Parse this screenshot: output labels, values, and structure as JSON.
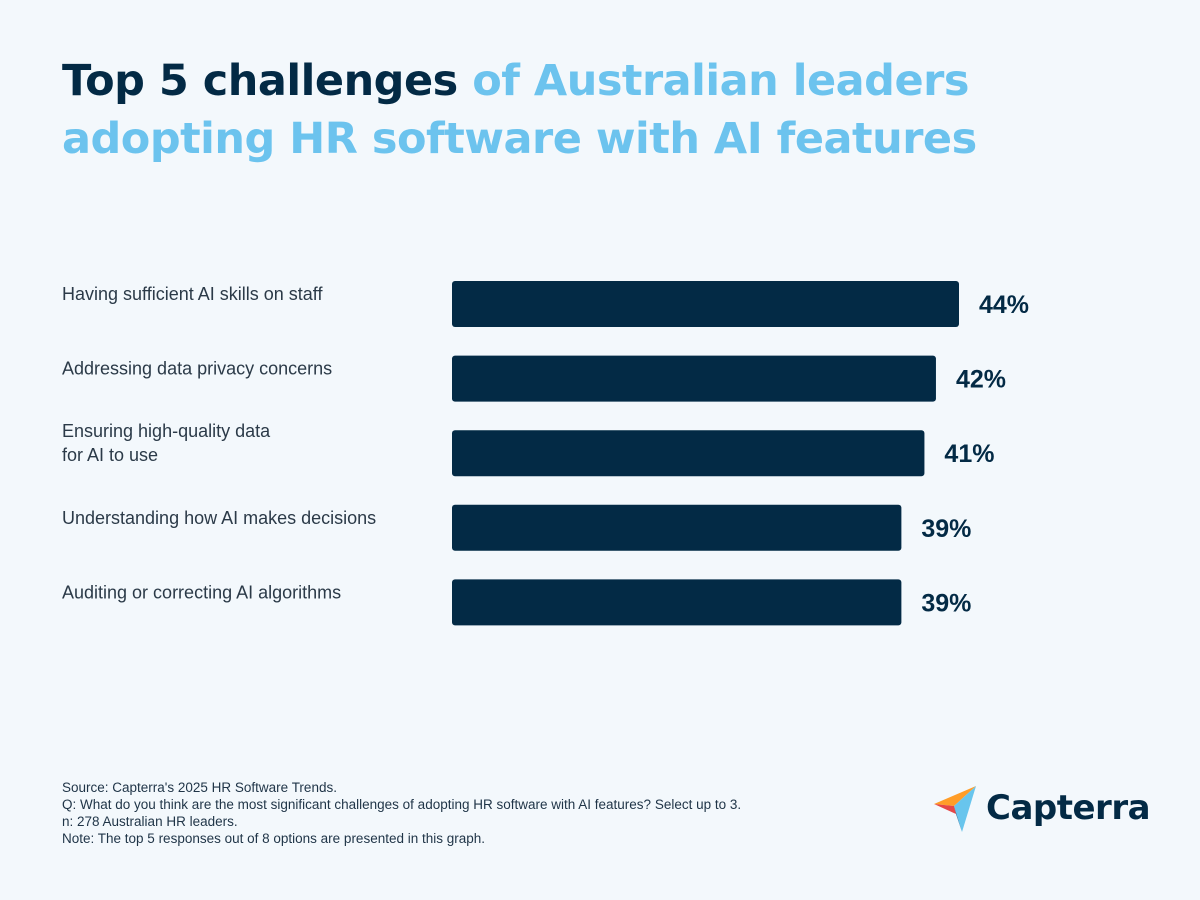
{
  "title": {
    "part1": "Top 5 challenges",
    "part2": "of Australian leaders adopting HR software with AI features"
  },
  "colors": {
    "title_dark": "#032a45",
    "title_light": "#6cc3ee",
    "bar": "#032a45",
    "background": "#f3f8fc"
  },
  "chart_data": {
    "type": "bar",
    "orientation": "horizontal",
    "categories": [
      [
        "Having sufficient AI skills on staff"
      ],
      [
        "Addressing data privacy concerns"
      ],
      [
        "Ensuring high-quality data",
        "for AI to use"
      ],
      [
        "Understanding how AI makes decisions"
      ],
      [
        "Auditing or correcting AI algorithms"
      ]
    ],
    "values": [
      44,
      42,
      41,
      39,
      39
    ],
    "value_labels": [
      "44%",
      "42%",
      "41%",
      "39%",
      "39%"
    ],
    "unit": "%",
    "grid": false,
    "legend": "none"
  },
  "footer": {
    "source": "Source: Capterra's 2025 HR Software Trends.",
    "question": "Q: What do you think are the most significant challenges of adopting HR software with AI features? Select up to 3.",
    "sample": "n: 278 Australian HR leaders.",
    "note": "Note: The top 5 responses out of 8 options are presented in this graph."
  },
  "logo": {
    "text": "Capterra",
    "icon": "capterra-arrow-icon"
  }
}
